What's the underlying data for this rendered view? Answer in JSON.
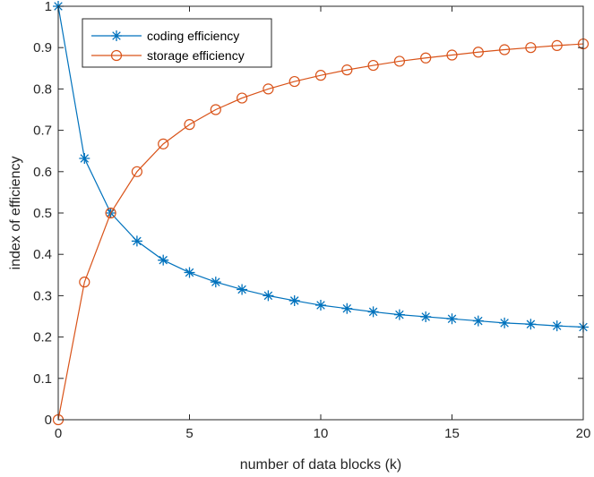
{
  "chart_data": {
    "type": "line",
    "xlabel": "number of data blocks (k)",
    "ylabel": "index of efficiency",
    "xlim": [
      0,
      20
    ],
    "ylim": [
      0,
      1
    ],
    "x_ticks": [
      0,
      5,
      10,
      15,
      20
    ],
    "y_ticks": [
      0,
      0.1,
      0.2,
      0.3,
      0.4,
      0.5,
      0.6,
      0.7,
      0.8,
      0.9,
      1
    ],
    "grid": false,
    "legend_position": "top-left",
    "x": [
      0,
      1,
      2,
      3,
      4,
      5,
      6,
      7,
      8,
      9,
      10,
      11,
      12,
      13,
      14,
      15,
      16,
      17,
      18,
      19,
      20
    ],
    "series": [
      {
        "name": "coding efficiency",
        "marker": "asterisk",
        "color": "#0072BD",
        "values": [
          1,
          0.632,
          0.5,
          0.432,
          0.386,
          0.356,
          0.333,
          0.315,
          0.3,
          0.288,
          0.277,
          0.269,
          0.261,
          0.254,
          0.249,
          0.244,
          0.239,
          0.234,
          0.231,
          0.227,
          0.224
        ]
      },
      {
        "name": "storage efficiency",
        "marker": "circle",
        "color": "#D95319",
        "values": [
          0,
          0.333,
          0.5,
          0.6,
          0.667,
          0.714,
          0.75,
          0.778,
          0.8,
          0.818,
          0.833,
          0.846,
          0.857,
          0.867,
          0.875,
          0.882,
          0.889,
          0.895,
          0.9,
          0.905,
          0.909
        ]
      }
    ]
  }
}
